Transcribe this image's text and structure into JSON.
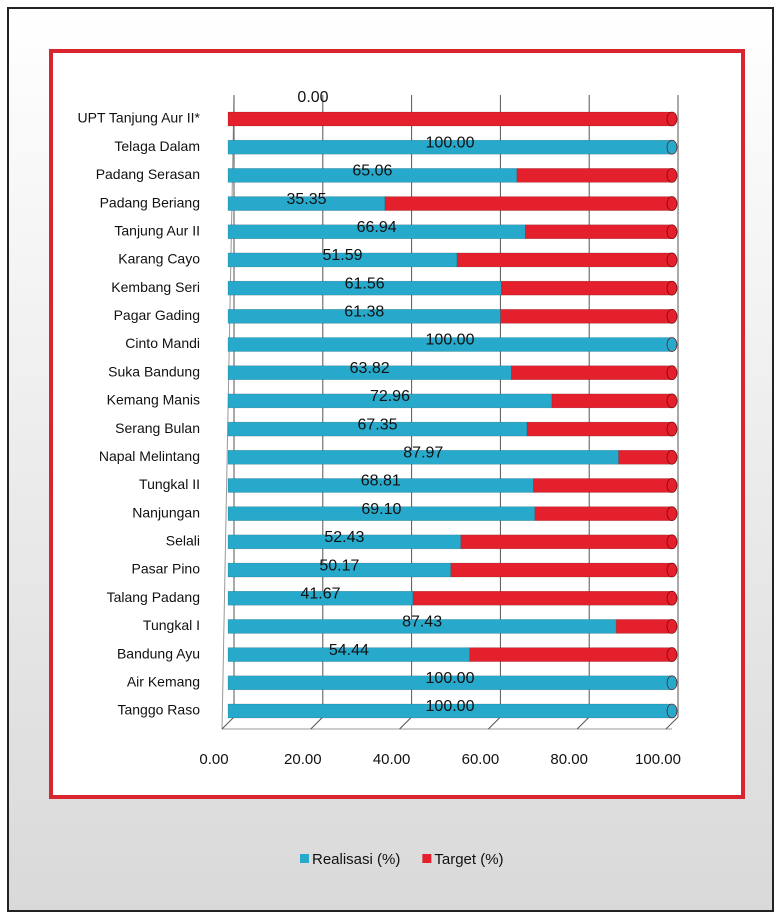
{
  "chart_data": {
    "type": "bar",
    "orientation": "horizontal",
    "stacked": true,
    "categories": [
      "UPT Tanjung Aur II*",
      "Telaga Dalam",
      "Padang Serasan",
      "Padang Beriang",
      "Tanjung Aur II",
      "Karang Cayo",
      "Kembang Seri",
      "Pagar Gading",
      "Cinto Mandi",
      "Suka Bandung",
      "Kemang Manis",
      "Serang Bulan",
      "Napal Melintang",
      "Tungkal II",
      "Nanjungan",
      "Selali",
      "Pasar Pino",
      "Talang Padang",
      "Tungkal I",
      "Bandung Ayu",
      "Air Kemang",
      "Tanggo Raso"
    ],
    "series": [
      {
        "name": "Realisasi (%)",
        "color": "#27a9cc",
        "values": [
          0,
          100,
          65.06,
          35.35,
          66.94,
          51.59,
          61.56,
          61.38,
          100,
          63.82,
          72.96,
          67.35,
          87.97,
          68.81,
          69.1,
          52.43,
          50.17,
          41.67,
          87.43,
          54.44,
          100,
          100
        ],
        "value_labels": [
          "0.00",
          "100.00",
          "65.06",
          "35.35",
          "66.94",
          "51.59",
          "61.56",
          "61.38",
          "100.00",
          "63.82",
          "72.96",
          "67.35",
          "87.97",
          "68.81",
          "69.10",
          "52.43",
          "50.17",
          "41.67",
          "87.43",
          "54.44",
          "100.00",
          "100.00"
        ]
      },
      {
        "name": "Target (%)",
        "color": "#e3202c",
        "values": [
          100,
          0,
          34.94,
          64.65,
          33.06,
          48.41,
          38.44,
          38.62,
          0,
          36.18,
          27.04,
          32.65,
          12.03,
          31.19,
          30.9,
          47.57,
          49.83,
          58.33,
          12.57,
          45.56,
          0,
          0
        ]
      }
    ],
    "xlim": [
      0,
      100
    ],
    "xticks": [
      {
        "value": 0,
        "label": "0.00"
      },
      {
        "value": 20,
        "label": "20.00"
      },
      {
        "value": 40,
        "label": "40.00"
      },
      {
        "value": 60,
        "label": "60.00"
      },
      {
        "value": 80,
        "label": "80.00"
      },
      {
        "value": 100,
        "label": "100.00"
      }
    ],
    "grid": true,
    "legend": "bottom"
  }
}
